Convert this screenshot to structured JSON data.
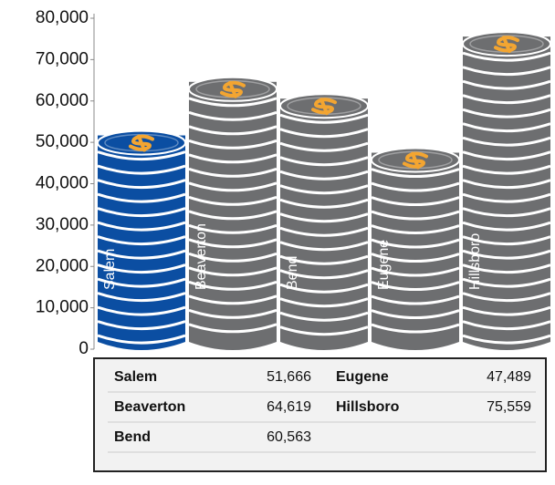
{
  "chart_data": {
    "type": "bar",
    "categories": [
      "Salem",
      "Beaverton",
      "Bend",
      "Eugene",
      "Hillsboro"
    ],
    "values": [
      51666,
      64619,
      60563,
      47489,
      75559
    ],
    "value_labels": [
      "51,666",
      "64,619",
      "60,563",
      "47,489",
      "75,559"
    ],
    "colors": [
      "#0b4ea2",
      "#6d6e70",
      "#6d6e70",
      "#6d6e70",
      "#6d6e70"
    ],
    "ylim": [
      0,
      80000
    ],
    "yticks": [
      0,
      {
        "value": 10000,
        "label": "10,000"
      },
      {
        "value": 20000,
        "label": "20,000"
      },
      {
        "value": 30000,
        "label": "30,000"
      },
      {
        "value": 40000,
        "label": "40,000"
      },
      {
        "value": 50000,
        "label": "50,000"
      },
      {
        "value": 60000,
        "label": "60,000"
      },
      {
        "value": 70000,
        "label": "70,000"
      },
      {
        "value": 80000,
        "label": "80,000"
      }
    ]
  }
}
